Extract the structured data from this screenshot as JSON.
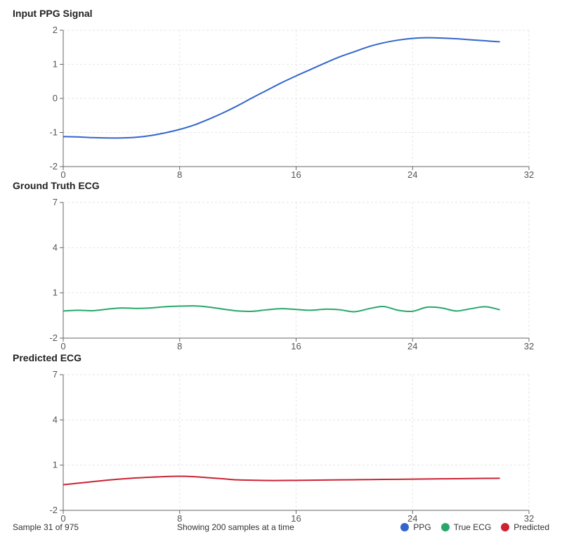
{
  "chart_data": [
    {
      "type": "line",
      "title": "Input PPG Signal",
      "xlim": [
        0,
        32
      ],
      "ylim": [
        -2,
        2
      ],
      "xticks": [
        0,
        8,
        16,
        24,
        32
      ],
      "yticks": [
        -2,
        -1,
        0,
        1,
        2
      ],
      "grid": true,
      "series": [
        {
          "color": "#3366cc",
          "x": [
            0,
            1,
            2,
            3,
            4,
            5,
            6,
            7,
            8,
            9,
            10,
            11,
            12,
            13,
            14,
            15,
            16,
            17,
            18,
            19,
            20,
            21,
            22,
            23,
            24,
            25,
            26,
            27,
            28,
            29,
            30
          ],
          "y": [
            -1.12,
            -1.13,
            -1.15,
            -1.16,
            -1.16,
            -1.14,
            -1.09,
            -1.01,
            -0.91,
            -0.78,
            -0.61,
            -0.42,
            -0.21,
            0.02,
            0.24,
            0.46,
            0.66,
            0.85,
            1.04,
            1.22,
            1.37,
            1.52,
            1.63,
            1.71,
            1.76,
            1.78,
            1.77,
            1.75,
            1.72,
            1.69,
            1.66
          ]
        }
      ]
    },
    {
      "type": "line",
      "title": "Ground Truth ECG",
      "xlim": [
        0,
        32
      ],
      "ylim": [
        -2,
        7
      ],
      "xticks": [
        0,
        8,
        16,
        24,
        32
      ],
      "yticks": [
        -2,
        1,
        4,
        7
      ],
      "grid": true,
      "series": [
        {
          "color": "#27a86a",
          "x": [
            0,
            1,
            2,
            3,
            4,
            5,
            6,
            7,
            8,
            9,
            10,
            11,
            12,
            13,
            14,
            15,
            16,
            17,
            18,
            19,
            20,
            21,
            22,
            23,
            24,
            25,
            26,
            27,
            28,
            29,
            30
          ],
          "y": [
            -0.2,
            -0.15,
            -0.18,
            -0.08,
            0.0,
            -0.03,
            0.0,
            0.08,
            0.12,
            0.14,
            0.06,
            -0.08,
            -0.2,
            -0.22,
            -0.12,
            -0.05,
            -0.1,
            -0.15,
            -0.08,
            -0.12,
            -0.25,
            -0.05,
            0.1,
            -0.15,
            -0.22,
            0.05,
            0.0,
            -0.2,
            -0.05,
            0.08,
            -0.12
          ]
        }
      ]
    },
    {
      "type": "line",
      "title": "Predicted ECG",
      "xlim": [
        0,
        32
      ],
      "ylim": [
        -2,
        7
      ],
      "xticks": [
        0,
        8,
        16,
        24,
        32
      ],
      "yticks": [
        -2,
        1,
        4,
        7
      ],
      "grid": true,
      "series": [
        {
          "color": "#cc2233",
          "x": [
            0,
            1,
            2,
            3,
            4,
            5,
            6,
            7,
            8,
            9,
            10,
            11,
            12,
            13,
            14,
            15,
            16,
            17,
            18,
            19,
            20,
            21,
            22,
            23,
            24,
            25,
            26,
            27,
            28,
            29,
            30
          ],
          "y": [
            -0.3,
            -0.2,
            -0.1,
            0.0,
            0.08,
            0.15,
            0.2,
            0.24,
            0.26,
            0.23,
            0.16,
            0.09,
            0.02,
            0.0,
            -0.02,
            -0.02,
            -0.01,
            0.0,
            0.01,
            0.02,
            0.03,
            0.04,
            0.05,
            0.06,
            0.07,
            0.08,
            0.09,
            0.1,
            0.11,
            0.12,
            0.13
          ]
        }
      ]
    }
  ],
  "footer": {
    "sample_text": "Sample 31 of 975",
    "showing_text": "Showing 200 samples at a time"
  },
  "legend": [
    {
      "label": "PPG",
      "color": "#3366cc"
    },
    {
      "label": "True ECG",
      "color": "#27a86a"
    },
    {
      "label": "Predicted",
      "color": "#cc2233"
    }
  ]
}
